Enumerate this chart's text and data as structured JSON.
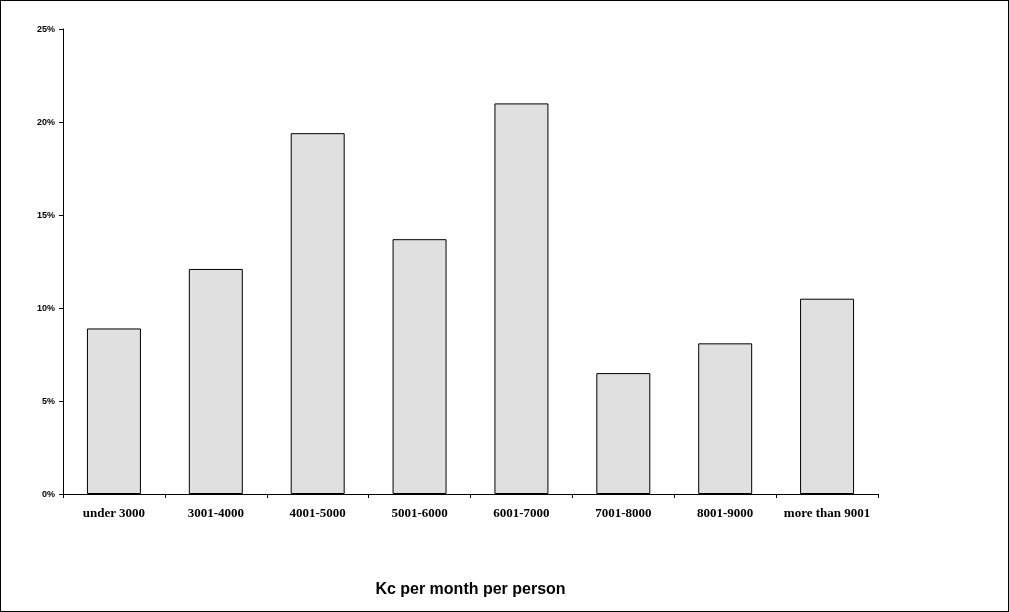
{
  "chart_data": {
    "type": "bar",
    "xlabel": "Kc per month per person",
    "categories": [
      "under 3000",
      "3001-4000",
      "4001-5000",
      "5001-6000",
      "6001-7000",
      "7001-8000",
      "8001-9000",
      "more than 9001"
    ],
    "values": [
      8.9,
      12.1,
      19.4,
      13.7,
      21.0,
      6.5,
      8.1,
      10.5
    ],
    "color": "#e0e0e0",
    "ylim": [
      0,
      25
    ],
    "yticks": [
      {
        "value": 0,
        "label": "0%"
      },
      {
        "value": 5,
        "label": "5%"
      },
      {
        "value": 10,
        "label": "10%"
      },
      {
        "value": 15,
        "label": "15%"
      },
      {
        "value": 20,
        "label": "20%"
      },
      {
        "value": 25,
        "label": "25%"
      }
    ],
    "grid": false
  }
}
